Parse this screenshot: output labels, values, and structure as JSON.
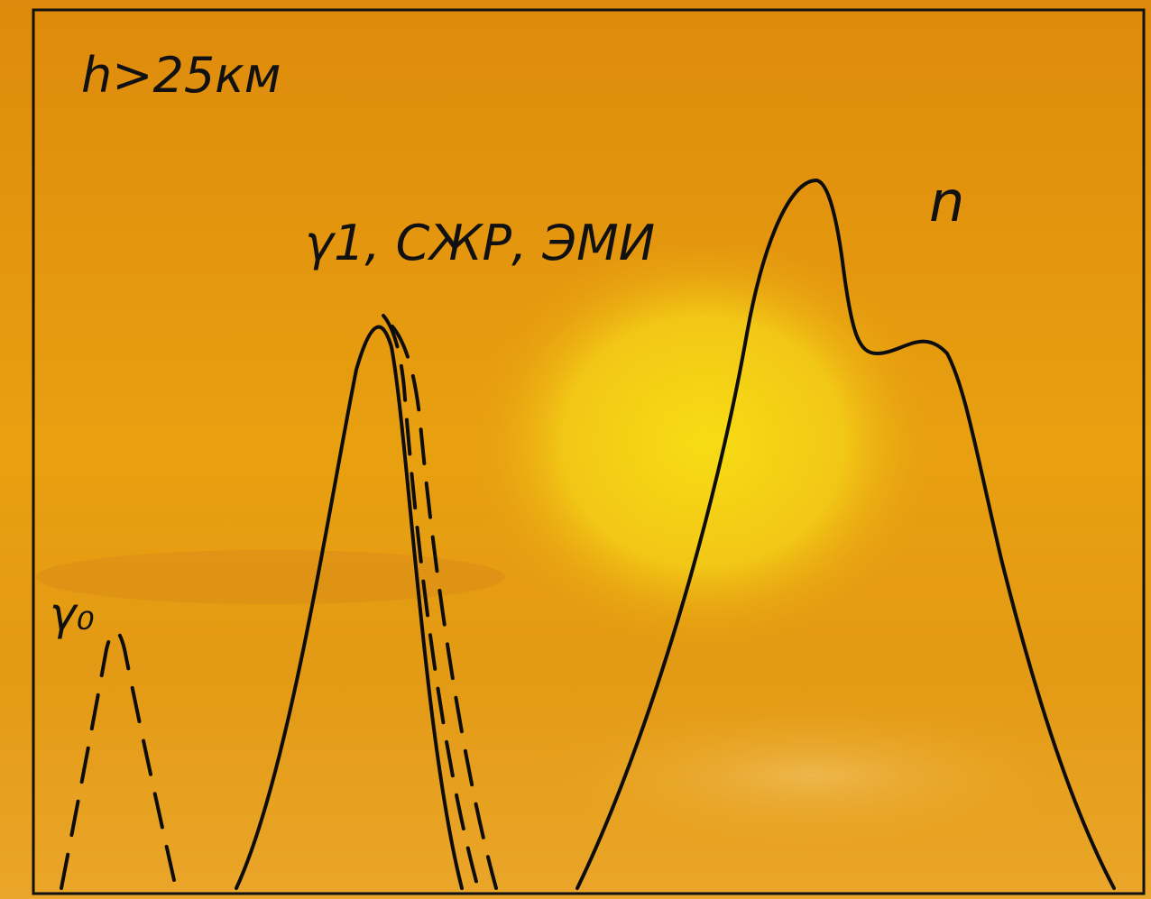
{
  "labels": {
    "altitude": "h>25км",
    "peak_middle": "γ1, СЖР, ЭМИ",
    "peak_right": "n",
    "peak_left": "γ₀"
  }
}
